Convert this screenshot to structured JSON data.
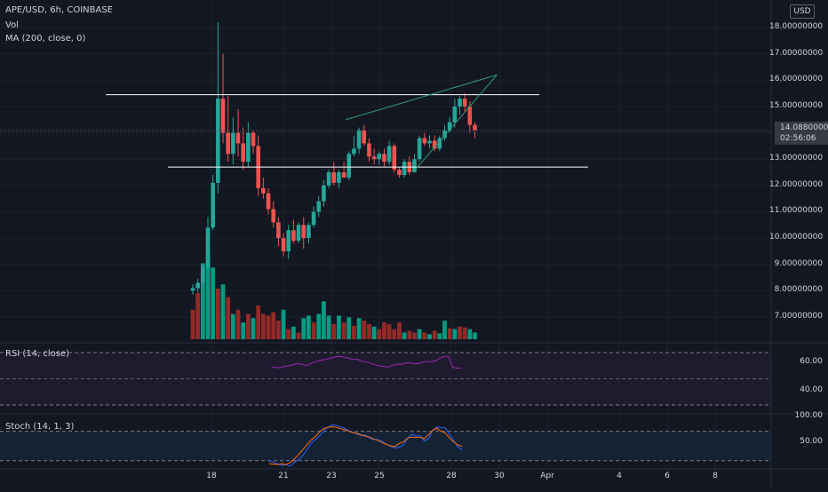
{
  "legend": {
    "symbol": "APE/USD, 6h, COINBASE",
    "vol": "Vol",
    "ma": "MA (200, close, 0)"
  },
  "currency": "USD",
  "price_tag": {
    "price": "14.08800000",
    "countdown": "02:56:06"
  },
  "rsi": {
    "label": "RSI (14, close)",
    "ticks": [
      "60.00",
      "40.00"
    ]
  },
  "stoch": {
    "label": "Stoch (14, 1, 3)",
    "ticks": [
      "100.00",
      "50.00"
    ]
  },
  "colors": {
    "background": "#131722",
    "up": "#26a69a",
    "down": "#ef5350",
    "vol_up": "#089981",
    "vol_down": "#922a28",
    "trendline": "#2e9d7a",
    "rsi_line": "#9c27b0",
    "stoch_k": "#2962ff",
    "stoch_d": "#ff6d00"
  },
  "chart_data": [
    {
      "type": "candlestick",
      "title": "APE/USD, 6h, COINBASE",
      "ylim": [
        6.2,
        18.4
      ],
      "yticks": [
        "18.00000000",
        "17.00000000",
        "16.00000000",
        "15.00000000",
        "13.00000000",
        "12.00000000",
        "11.00000000",
        "10.00000000",
        "9.00000000",
        "8.00000000",
        "7.00000000"
      ],
      "xticks": [
        "18",
        "21",
        "23",
        "25",
        "28",
        "30",
        "Apr",
        "4",
        "6",
        "8"
      ],
      "ohlc": [
        [
          8.0,
          8.25,
          7.85,
          8.1
        ],
        [
          8.1,
          8.45,
          7.95,
          8.3
        ],
        [
          8.3,
          9.0,
          8.2,
          8.9
        ],
        [
          8.9,
          10.8,
          8.8,
          10.4
        ],
        [
          10.4,
          12.4,
          10.3,
          12.1
        ],
        [
          12.1,
          18.2,
          11.7,
          15.3
        ],
        [
          15.3,
          17.0,
          13.6,
          14.0
        ],
        [
          14.0,
          15.4,
          12.9,
          13.2
        ],
        [
          13.2,
          14.6,
          12.8,
          14.0
        ],
        [
          14.0,
          14.9,
          13.1,
          13.6
        ],
        [
          13.6,
          14.2,
          12.6,
          12.9
        ],
        [
          12.9,
          14.4,
          12.7,
          14.0
        ],
        [
          14.0,
          14.1,
          13.2,
          13.5
        ],
        [
          13.5,
          13.9,
          11.6,
          11.9
        ],
        [
          11.9,
          12.3,
          11.5,
          11.7
        ],
        [
          11.7,
          11.9,
          10.9,
          11.1
        ],
        [
          11.1,
          11.4,
          10.4,
          10.6
        ],
        [
          10.6,
          10.8,
          9.7,
          10.0
        ],
        [
          10.0,
          10.2,
          9.3,
          9.5
        ],
        [
          9.5,
          10.5,
          9.2,
          10.3
        ],
        [
          10.3,
          10.7,
          9.8,
          9.9
        ],
        [
          9.9,
          10.6,
          9.8,
          10.5
        ],
        [
          10.5,
          10.8,
          9.6,
          10.0
        ],
        [
          10.0,
          10.6,
          9.8,
          10.5
        ],
        [
          10.5,
          11.2,
          10.4,
          11.0
        ],
        [
          11.0,
          11.6,
          10.8,
          11.4
        ],
        [
          11.4,
          12.2,
          11.2,
          12.0
        ],
        [
          12.0,
          12.6,
          11.9,
          12.5
        ],
        [
          12.5,
          12.9,
          12.0,
          12.1
        ],
        [
          12.1,
          12.6,
          11.9,
          12.5
        ],
        [
          12.5,
          12.9,
          12.3,
          12.3
        ],
        [
          12.3,
          13.3,
          12.2,
          13.2
        ],
        [
          13.2,
          13.9,
          13.1,
          13.4
        ],
        [
          13.4,
          14.2,
          13.2,
          14.1
        ],
        [
          14.1,
          14.3,
          13.5,
          13.6
        ],
        [
          13.6,
          13.8,
          12.9,
          13.1
        ],
        [
          13.1,
          13.4,
          12.8,
          13.0
        ],
        [
          13.0,
          13.3,
          12.8,
          13.2
        ],
        [
          13.2,
          13.4,
          12.7,
          12.9
        ],
        [
          12.9,
          13.7,
          12.8,
          13.5
        ],
        [
          13.5,
          13.6,
          12.5,
          12.6
        ],
        [
          12.6,
          12.7,
          12.3,
          12.4
        ],
        [
          12.4,
          13.0,
          12.3,
          12.9
        ],
        [
          12.9,
          13.1,
          12.4,
          12.5
        ],
        [
          12.5,
          13.2,
          12.5,
          13.0
        ],
        [
          13.0,
          13.9,
          12.9,
          13.8
        ],
        [
          13.8,
          14.0,
          13.5,
          13.6
        ],
        [
          13.6,
          13.9,
          13.4,
          13.7
        ],
        [
          13.7,
          13.9,
          13.3,
          13.4
        ],
        [
          13.4,
          13.9,
          13.3,
          13.8
        ],
        [
          13.8,
          14.3,
          13.7,
          14.1
        ],
        [
          14.1,
          14.6,
          14.0,
          14.4
        ],
        [
          14.4,
          15.3,
          14.2,
          15.0
        ],
        [
          15.0,
          15.4,
          14.7,
          15.3
        ],
        [
          15.3,
          15.5,
          14.8,
          15.0
        ],
        [
          15.0,
          15.2,
          14.0,
          14.3
        ],
        [
          14.3,
          14.4,
          13.8,
          14.1
        ]
      ],
      "volume": [
        [
          0.35,
          0
        ],
        [
          0.55,
          0
        ],
        [
          0.9,
          1
        ],
        [
          1.0,
          1
        ],
        [
          0.85,
          1
        ],
        [
          0.6,
          0
        ],
        [
          0.65,
          1
        ],
        [
          0.5,
          0
        ],
        [
          0.3,
          1
        ],
        [
          0.35,
          0
        ],
        [
          0.2,
          1
        ],
        [
          0.3,
          0
        ],
        [
          0.25,
          1
        ],
        [
          0.4,
          0
        ],
        [
          0.3,
          0
        ],
        [
          0.28,
          0
        ],
        [
          0.32,
          0
        ],
        [
          0.22,
          0
        ],
        [
          0.35,
          1
        ],
        [
          0.12,
          0
        ],
        [
          0.15,
          1
        ],
        [
          0.08,
          0
        ],
        [
          0.25,
          1
        ],
        [
          0.28,
          1
        ],
        [
          0.2,
          0
        ],
        [
          0.3,
          1
        ],
        [
          0.45,
          1
        ],
        [
          0.28,
          1
        ],
        [
          0.18,
          0
        ],
        [
          0.28,
          1
        ],
        [
          0.2,
          0
        ],
        [
          0.26,
          1
        ],
        [
          0.16,
          0
        ],
        [
          0.25,
          1
        ],
        [
          0.22,
          0
        ],
        [
          0.18,
          0
        ],
        [
          0.15,
          1
        ],
        [
          0.12,
          0
        ],
        [
          0.2,
          0
        ],
        [
          0.18,
          0
        ],
        [
          0.12,
          0
        ],
        [
          0.2,
          0
        ],
        [
          0.08,
          1
        ],
        [
          0.1,
          0
        ],
        [
          0.08,
          0
        ],
        [
          0.12,
          1
        ],
        [
          0.08,
          0
        ],
        [
          0.06,
          1
        ],
        [
          0.1,
          0
        ],
        [
          0.07,
          1
        ],
        [
          0.22,
          1
        ],
        [
          0.13,
          0
        ],
        [
          0.12,
          1
        ],
        [
          0.15,
          0
        ],
        [
          0.14,
          0
        ],
        [
          0.12,
          1
        ],
        [
          0.08,
          1
        ]
      ],
      "horizontal_lines": [
        15.45,
        12.7
      ],
      "trendlines": [
        [
          [
            23.6,
            14.5
          ],
          [
            29.9,
            16.2
          ]
        ],
        [
          [
            26.4,
            12.5
          ],
          [
            29.9,
            16.2
          ]
        ]
      ],
      "last_price": 14.088
    },
    {
      "type": "line",
      "title": "RSI (14, close)",
      "ylim": [
        30,
        72
      ],
      "yticks": [
        "60.00",
        "40.00"
      ],
      "series": [
        {
          "values": [
            58.5,
            58.8,
            58.2,
            59.5,
            59.8,
            60.8,
            61.5,
            61.2,
            60.0,
            61.4,
            62.8,
            63.9,
            64.5,
            65.1,
            66.0,
            66.8,
            67.2,
            66.3,
            65.4,
            64.9,
            64.7,
            63.2,
            62.9,
            61.8,
            60.7,
            59.7,
            59.5,
            58.9,
            60.2,
            61.1,
            60.9,
            61.9,
            62.1,
            61.5,
            61.5,
            62.6,
            63.0,
            63.1,
            63.7,
            65.5,
            67.1,
            67.2,
            58.7,
            58.1,
            58.2
          ]
        }
      ],
      "x_start": 20.5,
      "x_step": 0.18
    },
    {
      "type": "line",
      "title": "Stoch (14, 1, 3)",
      "ylim": [
        5,
        110
      ],
      "yticks": [
        "100.00",
        "50.00"
      ],
      "series": [
        {
          "values": [
            20,
            17,
            14,
            10,
            12,
            9,
            16,
            22,
            30,
            42,
            55,
            63,
            70,
            80,
            88,
            93,
            92,
            89,
            86,
            81,
            78,
            74,
            71,
            72,
            66,
            63,
            63,
            59,
            53,
            49,
            46,
            47,
            52,
            65,
            74,
            70,
            71,
            60,
            65,
            81,
            89,
            87,
            87,
            73,
            61,
            48,
            42
          ]
        },
        {
          "values": [
            14,
            13,
            12,
            14,
            12,
            16,
            23,
            32,
            42,
            52,
            62,
            69,
            78,
            85,
            88,
            89,
            88,
            85,
            83,
            80,
            77,
            76,
            72,
            70,
            68,
            64,
            61,
            57,
            53,
            50,
            49,
            55,
            58,
            66,
            68,
            67,
            68,
            65,
            73,
            82,
            86,
            80,
            76,
            66,
            58,
            52,
            49
          ]
        }
      ],
      "x_start": 20.4,
      "x_step": 0.175
    }
  ]
}
